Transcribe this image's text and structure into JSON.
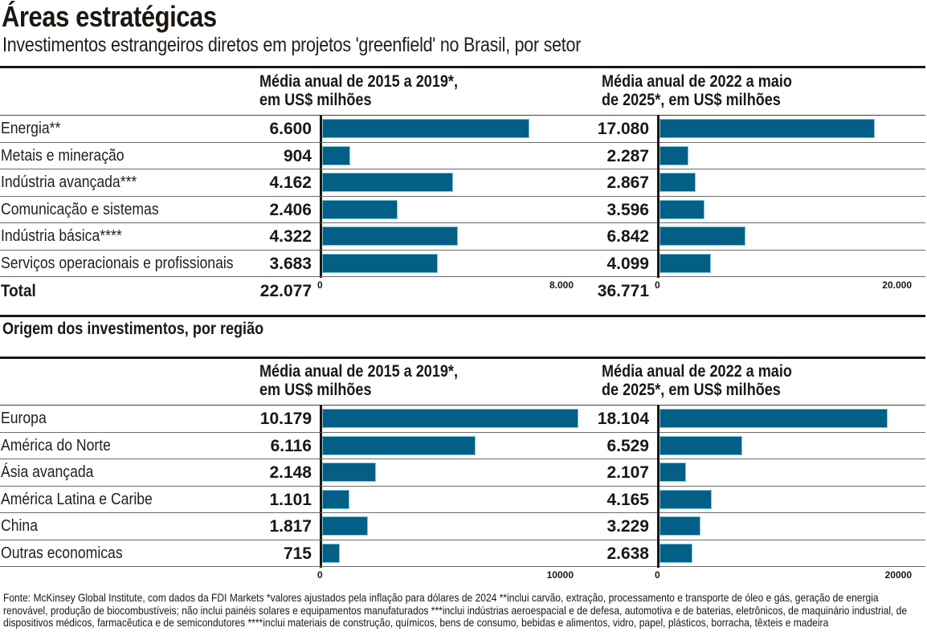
{
  "title": "Áreas estratégicas",
  "subtitle": "Investimentos estrangeiros diretos em projetos 'greenfield' no Brasil, por setor",
  "section2_title": "Origem dos investimentos, por região",
  "footnote": "Fonte: McKinsey Global Institute, com dados da FDI Markets *valores ajustados pela inflação para dólares de 2024 **inclui carvão, extração, processamento e transporte de óleo e gás, geração de energia renovável, produção de biocombustíveis; não inclui painéis solares e equipamentos manufaturados ***inclui indústrias aeroespacial e de defesa, automotiva e de baterias, eletrônicos, de maquinário industrial, de dispositivos médicos, farmacêutica e de semicondutores ****inclui materiais de construção, químicos, bens de consumo, bebidas e alimentos, vidro, papel, plásticos, borracha, têxteis e madeira",
  "colors": {
    "bar": "#035f86",
    "text": "#1c1712"
  },
  "chart_data": [
    {
      "type": "bar",
      "orientation": "horizontal",
      "title": "Média anual de 2015 a 2019*, em US$ milhões",
      "header_lines": [
        "Média anual de 2015 a 2019*,",
        "em US$ milhões"
      ],
      "group": "Por setor",
      "categories": [
        "Energia**",
        "Metais e mineração",
        "Indústria avançada***",
        "Comunicação e sistemas",
        "Indústria básica****",
        "Serviços operacionais e profissionais"
      ],
      "values": [
        6600,
        904,
        4162,
        2406,
        4322,
        3683
      ],
      "value_labels": [
        "6.600",
        "904",
        "4.162",
        "2.406",
        "4.322",
        "3.683"
      ],
      "total_label": "Total",
      "total": "22.077",
      "xlim": [
        0,
        8000
      ],
      "ticks": [
        "0",
        "8.000"
      ],
      "tick_values": [
        0,
        8000
      ]
    },
    {
      "type": "bar",
      "orientation": "horizontal",
      "title": "Média anual de 2022 a maio de 2025*, em US$ milhões",
      "header_lines": [
        "Média anual de 2022 a maio",
        "de 2025*, em US$ milhões"
      ],
      "group": "Por setor",
      "categories": [
        "Energia**",
        "Metais e mineração",
        "Indústria avançada***",
        "Comunicação e sistemas",
        "Indústria básica****",
        "Serviços operacionais e profissionais"
      ],
      "values": [
        17080,
        2287,
        2867,
        3596,
        6842,
        4099
      ],
      "value_labels": [
        "17.080",
        "2.287",
        "2.867",
        "3.596",
        "6.842",
        "4.099"
      ],
      "total": "36.771",
      "xlim": [
        0,
        20000
      ],
      "ticks": [
        "0",
        "20.000"
      ],
      "tick_values": [
        0,
        20000
      ]
    },
    {
      "type": "bar",
      "orientation": "horizontal",
      "title": "Média anual de 2015 a 2019*, em US$ milhões",
      "header_lines": [
        "Média anual de 2015 a 2019*,",
        "em US$ milhões"
      ],
      "group": "Origem dos investimentos, por região",
      "categories": [
        "Europa",
        "América do Norte",
        "Ásia avançada",
        "América Latina e Caribe",
        "China",
        "Outras economicas"
      ],
      "values": [
        10179,
        6116,
        2148,
        1101,
        1817,
        715
      ],
      "value_labels": [
        "10.179",
        "6.116",
        "2.148",
        "1.101",
        "1.817",
        "715"
      ],
      "xlim": [
        0,
        10000
      ],
      "ticks": [
        "0",
        "10000"
      ],
      "tick_values": [
        0,
        10000
      ]
    },
    {
      "type": "bar",
      "orientation": "horizontal",
      "title": "Média anual de 2022 a maio de 2025*, em US$ milhões",
      "header_lines": [
        "Média anual de 2022 a maio",
        "de 2025*, em US$ milhões"
      ],
      "group": "Origem dos investimentos, por região",
      "categories": [
        "Europa",
        "América do Norte",
        "Ásia avançada",
        "América Latina e Caribe",
        "China",
        "Outras economicas"
      ],
      "values": [
        18104,
        6529,
        2107,
        4165,
        3229,
        2638
      ],
      "value_labels": [
        "18.104",
        "6.529",
        "2.107",
        "4.165",
        "3.229",
        "2.638"
      ],
      "xlim": [
        0,
        20000
      ],
      "ticks": [
        "0",
        "20000"
      ],
      "tick_values": [
        0,
        20000
      ]
    }
  ]
}
